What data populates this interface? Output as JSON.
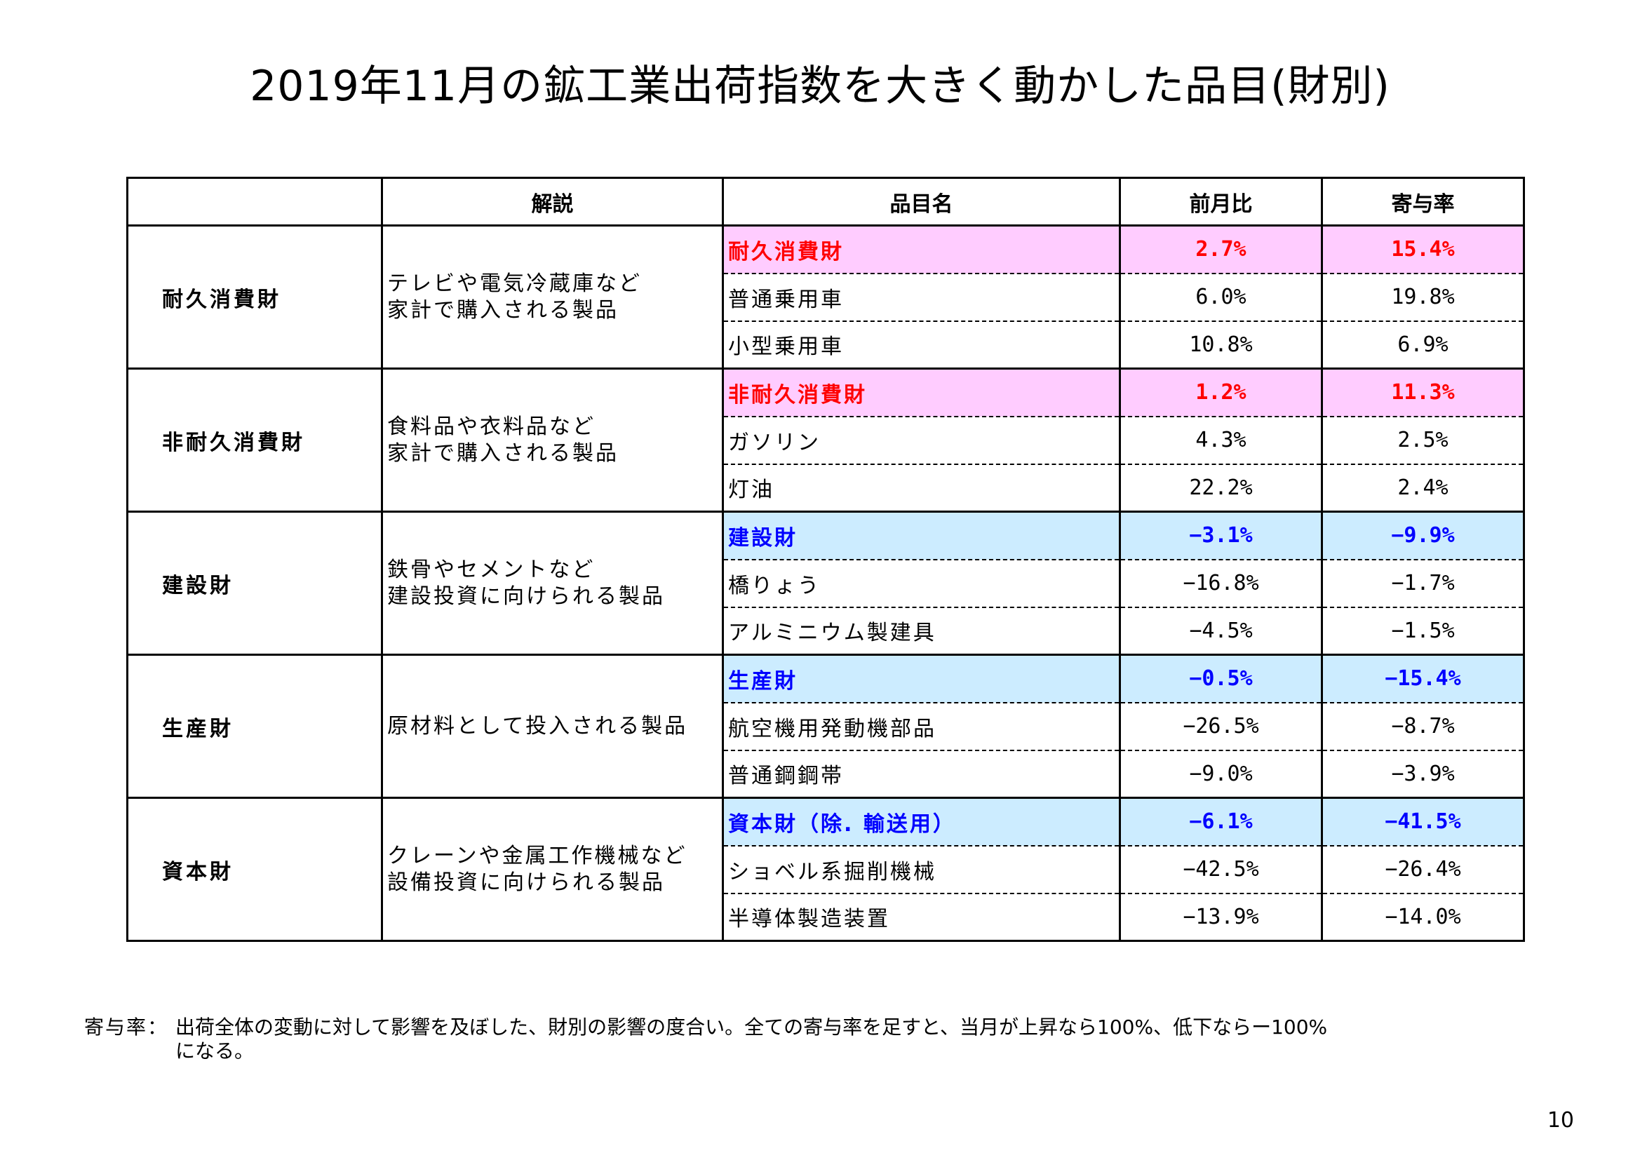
{
  "title": "2019年11月の鉱工業出荷指数を大きく動かした品目(財別)",
  "table": {
    "headers": [
      "",
      "解説",
      "品目名",
      "前月比",
      "寄与率"
    ],
    "groups": [
      {
        "name": "耐久消費財",
        "desc1": "テレビや電気冷蔵庫など",
        "desc2": "家計で購入される製品",
        "color": "#ff0000",
        "bg": "#ffccff",
        "rows": [
          {
            "item": "耐久消費財",
            "mom": "2.7%",
            "contrib": "15.4%"
          },
          {
            "item": "普通乗用車",
            "mom": "6.0%",
            "contrib": "19.8%"
          },
          {
            "item": "小型乗用車",
            "mom": "10.8%",
            "contrib": "6.9%"
          }
        ]
      },
      {
        "name": "非耐久消費財",
        "desc1": "食料品や衣料品など",
        "desc2": "家計で購入される製品",
        "color": "#ff0000",
        "bg": "#ffccff",
        "rows": [
          {
            "item": "非耐久消費財",
            "mom": "1.2%",
            "contrib": "11.3%"
          },
          {
            "item": "ガソリン",
            "mom": "4.3%",
            "contrib": "2.5%"
          },
          {
            "item": "灯油",
            "mom": "22.2%",
            "contrib": "2.4%"
          }
        ]
      },
      {
        "name": "建設財",
        "desc1": "鉄骨やセメントなど",
        "desc2": "建設投資に向けられる製品",
        "color": "#0000ff",
        "bg": "#ccecff",
        "rows": [
          {
            "item": "建設財",
            "mom": "−3.1%",
            "contrib": "−9.9%"
          },
          {
            "item": "橋りょう",
            "mom": "−16.8%",
            "contrib": "−1.7%"
          },
          {
            "item": "アルミニウム製建具",
            "mom": "−4.5%",
            "contrib": "−1.5%"
          }
        ]
      },
      {
        "name": "生産財",
        "desc1": "原材料として投入される製品",
        "desc2": "",
        "color": "#0000ff",
        "bg": "#ccecff",
        "rows": [
          {
            "item": "生産財",
            "mom": "−0.5%",
            "contrib": "−15.4%"
          },
          {
            "item": "航空機用発動機部品",
            "mom": "−26.5%",
            "contrib": "−8.7%"
          },
          {
            "item": "普通鋼鋼帯",
            "mom": "−9.0%",
            "contrib": "−3.9%"
          }
        ]
      },
      {
        "name": "資本財",
        "desc1": "クレーンや金属工作機械など",
        "desc2": "設備投資に向けられる製品",
        "color": "#0000ff",
        "bg": "#ccecff",
        "rows": [
          {
            "item": "資本財（除. 輸送用）",
            "mom": "−6.1%",
            "contrib": "−41.5%"
          },
          {
            "item": "ショベル系掘削機械",
            "mom": "−42.5%",
            "contrib": "−26.4%"
          },
          {
            "item": "半導体製造装置",
            "mom": "−13.9%",
            "contrib": "−14.0%"
          }
        ]
      }
    ]
  },
  "footnote": {
    "label": "寄与率：",
    "line1": "出荷全体の変動に対して影響を及ぼした、財別の影響の度合い。全ての寄与率を足すと、当月が上昇なら100%、低下ならー100%",
    "line2": "になる。"
  },
  "page_number": "10"
}
